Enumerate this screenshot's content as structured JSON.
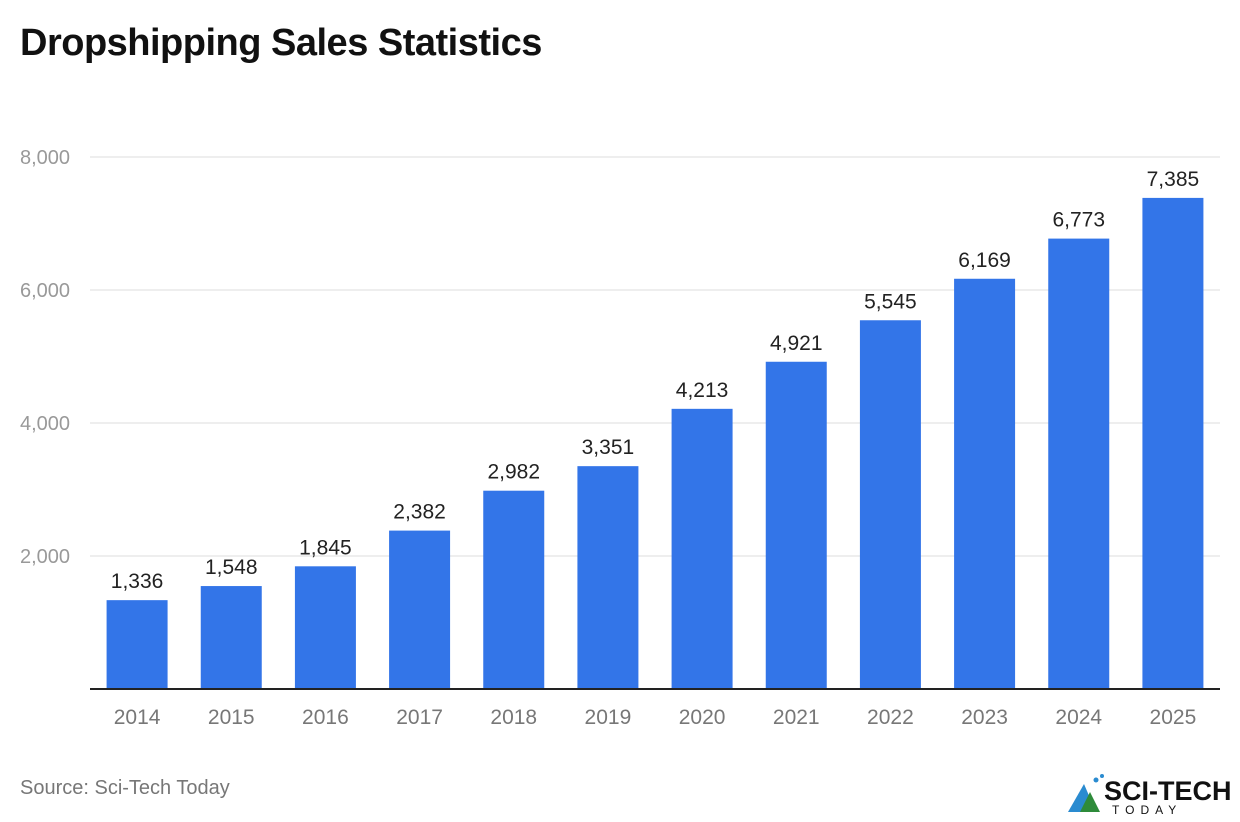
{
  "title": "Dropshipping Sales Statistics",
  "source": "Source: Sci-Tech Today",
  "logo": {
    "line1": "SCI-TECH",
    "line2": "TODAY"
  },
  "colors": {
    "bar": "#3375e8",
    "grid": "#dddddd",
    "axis": "#222222",
    "tick_text": "#999999",
    "label_text": "#222222"
  },
  "chart_data": {
    "type": "bar",
    "title": "Dropshipping Sales Statistics",
    "categories": [
      "2014",
      "2015",
      "2016",
      "2017",
      "2018",
      "2019",
      "2020",
      "2021",
      "2022",
      "2023",
      "2024",
      "2025"
    ],
    "values": [
      1336,
      1548,
      1845,
      2382,
      2982,
      3351,
      4213,
      4921,
      5545,
      6169,
      6773,
      7385
    ],
    "data_labels": [
      "1,336",
      "1,548",
      "1,845",
      "2,382",
      "2,982",
      "3,351",
      "4,213",
      "4,921",
      "5,545",
      "6,169",
      "6,773",
      "7,385"
    ],
    "ylim": [
      0,
      8000
    ],
    "yticks": [
      2000,
      4000,
      6000,
      8000
    ],
    "ytick_labels": [
      "2,000",
      "4,000",
      "6,000",
      "8,000"
    ],
    "grid": true,
    "legend": "none"
  }
}
